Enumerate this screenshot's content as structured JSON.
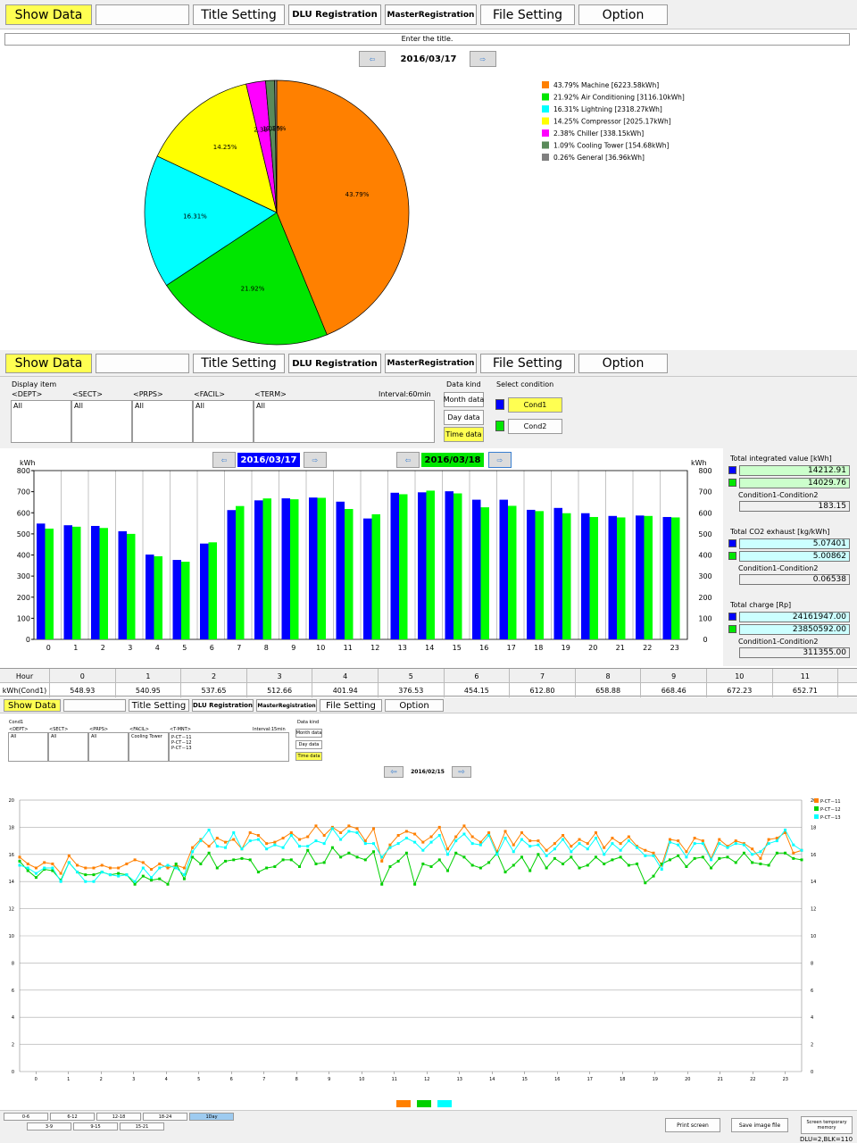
{
  "toolbar_main": {
    "show_data": "Show Data",
    "title_setting": "Title Setting",
    "dlu_registration": "DLU Registration",
    "master_registration": "MasterRegistration",
    "file_setting": "File Setting",
    "option": "Option"
  },
  "pie_view": {
    "title_hint": "Enter the title.",
    "date": "2016/03/17"
  },
  "pie_chart_data": {
    "type": "pie",
    "slices": [
      {
        "label": "43.79% Machine [6223.58kWh]",
        "pct_label": "43.79%",
        "value": 43.79,
        "color": "#ff8000"
      },
      {
        "label": "21.92% Air Conditioning [3116.10kWh]",
        "pct_label": "21.92%",
        "value": 21.92,
        "color": "#00e600"
      },
      {
        "label": "16.31% Lightning [2318.27kWh]",
        "pct_label": "16.31%",
        "value": 16.31,
        "color": "#00ffff"
      },
      {
        "label": "14.25% Compressor [2025.17kWh]",
        "pct_label": "14.25%",
        "value": 14.25,
        "color": "#ffff00"
      },
      {
        "label": "2.38% Chiller [338.15kWh]",
        "pct_label": "2.38%",
        "value": 2.38,
        "color": "#ff00ff"
      },
      {
        "label": "1.09% Cooling Tower [154.68kWh]",
        "pct_label": "1.09%",
        "value": 1.09,
        "color": "#5a8a5a"
      },
      {
        "label": "0.26% General [36.96kWh]",
        "pct_label": "0.26%",
        "value": 0.26,
        "color": "#808080"
      }
    ]
  },
  "toolbar2": {
    "show_data": "Show Data",
    "title_setting": "Title Setting",
    "dlu_registration": "DLU Registration",
    "master_registration": "MasterRegistration",
    "file_setting": "File Setting",
    "option": "Option"
  },
  "filter1": {
    "display_item": "Display item",
    "dept": "<DEPT>",
    "sect": "<SECT>",
    "prps": "<PRPS>",
    "facil": "<FACIL>",
    "term": "<TERM>",
    "interval": "Interval:60min",
    "dept_val": "All",
    "sect_val": "All",
    "prps_val": "All",
    "facil_val": "All",
    "term_val": "All",
    "data_kind": "Data kind",
    "month_data": "Month data",
    "day_data": "Day data",
    "time_data": "Time data",
    "select_condition": "Select condition",
    "cond1": "Cond1",
    "cond2": "Cond2",
    "cond1_color": "#0000ff",
    "cond2_color": "#00e600"
  },
  "bar_view": {
    "date1": "2016/03/17",
    "date2": "2016/03/18",
    "unit": "kWh",
    "total_integrated_label": "Total integrated value [kWh]",
    "ti_cond1": "14212.91",
    "ti_cond2": "14029.76",
    "cond_diff_label": "Condition1-Condition2",
    "ti_diff": "183.15",
    "total_co2_label": "Total CO2 exhaust [kg/kWh]",
    "co2_cond1": "5.07401",
    "co2_cond2": "5.00862",
    "co2_diff": "0.06538",
    "total_charge_label": "Total charge [Rp]",
    "charge_cond1": "24161947.00",
    "charge_cond2": "23850592.00",
    "charge_diff": "311355.00"
  },
  "chart_data": [
    {
      "type": "bar",
      "ylabel": "kWh",
      "ylim": [
        0,
        800
      ],
      "yticks": [
        0,
        100,
        200,
        300,
        400,
        500,
        600,
        700,
        800
      ],
      "categories": [
        "0",
        "1",
        "2",
        "3",
        "4",
        "5",
        "6",
        "7",
        "8",
        "9",
        "10",
        "11",
        "12",
        "13",
        "14",
        "15",
        "16",
        "17",
        "18",
        "19",
        "20",
        "21",
        "22",
        "23"
      ],
      "series": [
        {
          "name": "Cond1",
          "color": "#0000ff",
          "values": [
            548.93,
            540.95,
            537.65,
            512.66,
            401.94,
            376.53,
            454.15,
            612.8,
            658.88,
            668.46,
            672.23,
            652.71,
            573,
            695,
            697,
            702,
            662,
            662,
            614,
            623,
            598,
            585,
            587,
            580
          ]
        },
        {
          "name": "Cond2",
          "color": "#00ff00",
          "values": [
            525,
            534,
            528,
            500,
            394,
            368,
            460,
            632,
            668,
            664,
            671,
            618,
            593,
            688,
            705,
            692,
            626,
            633,
            608,
            598,
            580,
            578,
            585,
            578
          ]
        }
      ]
    },
    {
      "type": "line",
      "ylim": [
        0,
        20
      ],
      "yticks": [
        0,
        2,
        4,
        6,
        8,
        10,
        12,
        14,
        16,
        18,
        20
      ],
      "xticks": [
        "0",
        "1",
        "2",
        "3",
        "4",
        "5",
        "6",
        "7",
        "8",
        "9",
        "10",
        "11",
        "12",
        "13",
        "14",
        "15",
        "16",
        "17",
        "18",
        "19",
        "20",
        "21",
        "22",
        "23"
      ],
      "series": [
        {
          "name": "P-CT－11",
          "color": "#ff8000",
          "values": [
            15.8,
            15.3,
            15.0,
            15.4,
            15.3,
            14.6,
            15.9,
            15.2,
            15.0,
            15.0,
            15.2,
            15.0,
            15.0,
            15.3,
            15.6,
            15.4,
            14.9,
            15.3,
            15.0,
            15.2,
            15.0,
            16.5,
            17.1,
            16.6,
            17.2,
            16.9,
            17.1,
            16.4,
            17.6,
            17.4,
            16.8,
            16.9,
            17.2,
            17.6,
            17.1,
            17.3,
            18.1,
            17.4,
            18.0,
            17.6,
            18.1,
            17.9,
            17.0,
            17.9,
            15.5,
            16.7,
            17.4,
            17.7,
            17.5,
            16.9,
            17.3,
            18.0,
            16.4,
            17.3,
            18.1,
            17.3,
            16.9,
            17.6,
            16.2,
            17.7,
            16.7,
            17.6,
            17.0,
            17.0,
            16.3,
            16.8,
            17.4,
            16.6,
            17.1,
            16.8,
            17.6,
            16.5,
            17.2,
            16.8,
            17.3,
            16.6,
            16.3,
            16.1,
            15.2,
            17.1,
            17.0,
            16.2,
            17.2,
            17.0,
            15.7,
            17.1,
            16.6,
            17.0,
            16.8,
            16.4,
            15.7,
            17.1,
            17.2,
            17.6,
            16.1,
            16.3
          ]
        },
        {
          "name": "P-CT－12",
          "color": "#00d000",
          "values": [
            15.5,
            14.8,
            14.3,
            14.9,
            14.8,
            14.1,
            15.4,
            14.7,
            14.5,
            14.5,
            14.7,
            14.5,
            14.6,
            14.5,
            13.8,
            14.4,
            14.1,
            14.2,
            13.8,
            15.3,
            14.2,
            15.8,
            15.3,
            16.1,
            15.0,
            15.5,
            15.6,
            15.7,
            15.6,
            14.7,
            15.0,
            15.1,
            15.6,
            15.6,
            15.1,
            16.3,
            15.3,
            15.4,
            16.5,
            15.8,
            16.1,
            15.8,
            15.6,
            16.2,
            13.8,
            15.1,
            15.5,
            16.1,
            13.8,
            15.3,
            15.1,
            15.6,
            14.8,
            16.1,
            15.8,
            15.2,
            15.0,
            15.4,
            16.1,
            14.7,
            15.2,
            15.8,
            14.8,
            16.0,
            15.0,
            15.7,
            15.3,
            15.8,
            15.0,
            15.2,
            15.8,
            15.3,
            15.6,
            15.8,
            15.2,
            15.3,
            13.9,
            14.4,
            15.3,
            15.6,
            15.9,
            15.1,
            15.7,
            15.8,
            15.0,
            15.7,
            15.8,
            15.4,
            16.1,
            15.4,
            15.3,
            15.2,
            16.1,
            16.1,
            15.7,
            15.6
          ]
        },
        {
          "name": "P-CT－13",
          "color": "#00ffff",
          "values": [
            15.2,
            15.0,
            14.6,
            15.0,
            15.0,
            14.0,
            15.4,
            14.7,
            14.0,
            14.0,
            14.7,
            14.5,
            14.4,
            14.5,
            14.0,
            15.0,
            14.3,
            15.0,
            15.2,
            15.0,
            14.5,
            16.2,
            17.0,
            17.8,
            16.6,
            16.5,
            17.6,
            16.4,
            17.0,
            17.1,
            16.4,
            16.7,
            16.5,
            17.4,
            16.6,
            16.6,
            17.0,
            16.8,
            17.9,
            17.1,
            17.7,
            17.6,
            16.8,
            16.8,
            15.8,
            16.5,
            16.8,
            17.2,
            16.9,
            16.3,
            16.9,
            17.4,
            16.0,
            17.0,
            17.5,
            16.8,
            16.7,
            17.4,
            16.0,
            17.2,
            16.2,
            17.1,
            16.6,
            16.7,
            15.9,
            16.4,
            17.1,
            16.2,
            16.8,
            16.4,
            17.2,
            16.0,
            16.8,
            16.3,
            17.0,
            16.5,
            15.9,
            15.9,
            14.9,
            16.9,
            16.7,
            15.8,
            16.8,
            16.8,
            15.6,
            16.8,
            16.5,
            16.8,
            16.7,
            16.0,
            16.2,
            16.8,
            17.0,
            17.8,
            16.7,
            16.3
          ]
        }
      ]
    }
  ],
  "table": {
    "hour_label": "Hour",
    "kwh_label": "kWh(Cond1)",
    "hours": [
      "0",
      "1",
      "2",
      "3",
      "4",
      "5",
      "6",
      "7",
      "8",
      "9",
      "10",
      "11"
    ],
    "values": [
      "548.93",
      "540.95",
      "537.65",
      "512.66",
      "401.94",
      "376.53",
      "454.15",
      "612.80",
      "658.88",
      "668.46",
      "672.23",
      "652.71"
    ]
  },
  "toolbar3": {
    "show_data": "Show Data",
    "title_setting": "Title Setting",
    "dlu_registration": "DLU Registration",
    "master_registration": "MasterRegistration",
    "file_setting": "File Setting",
    "option": "Option"
  },
  "filter2": {
    "cond": "Cond1",
    "dept": "<DEPT>",
    "sect": "<SECT>",
    "prps": "<PRPS>",
    "facil": "<FACIL>",
    "tmnt": "<T-MNT>",
    "interval": "Interval:15min",
    "dept_val": "All",
    "sect_val": "All",
    "prps_val": "All",
    "facil_val": "Cooling Tower",
    "tmnt_vals": [
      "P-CT－11",
      "P-CT－12",
      "P-CT－13"
    ],
    "data_kind": "Data kind",
    "month_data": "Month data",
    "day_data": "Day data",
    "time_data": "Time data"
  },
  "line_view": {
    "date": "2016/02/15"
  },
  "bottom": {
    "range_buttons": [
      "0-6",
      "6-12",
      "12-18",
      "18-24",
      "1Day"
    ],
    "range_buttons2": [
      "3-9",
      "9-15",
      "15-21"
    ],
    "print_screen": "Print screen",
    "save_image": "Save image file",
    "screen_memory": "Screen temporary memory",
    "status": "DLU=2,BLK=110"
  }
}
